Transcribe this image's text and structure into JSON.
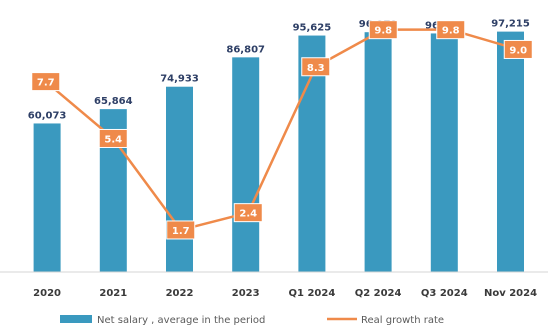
{
  "chart_data": {
    "type": "bar",
    "categories": [
      "2020",
      "2021",
      "2022",
      "2023",
      "Q1 2024",
      "Q2 2024",
      "Q3 2024",
      "Nov 2024"
    ],
    "series": [
      {
        "name": "Net salary , average in the period",
        "chart_type": "bar",
        "axis": "left",
        "values": [
          60073,
          65864,
          74933,
          86807,
          95625,
          96979,
          96475,
          97215
        ],
        "labels": [
          "60,073",
          "65,864",
          "74,933",
          "86,807",
          "95,625",
          "96,979",
          "96,475",
          "97,215"
        ],
        "color": "#3a99bf"
      },
      {
        "name": "Real growth rate",
        "chart_type": "line",
        "axis": "right",
        "values": [
          7.7,
          5.4,
          1.7,
          2.4,
          8.3,
          9.8,
          9.8,
          9.0
        ],
        "labels": [
          "7.7",
          "5.4",
          "1.7",
          "2.4",
          "8.3",
          "9.8",
          "9.8",
          "9.0"
        ],
        "color": "#ef8a4a"
      }
    ],
    "left_axis": {
      "min": 0,
      "max": 110000,
      "visible": false
    },
    "right_axis": {
      "min": 0,
      "max": 11,
      "visible": false
    },
    "grid": false,
    "legend": {
      "position": "bottom-center"
    }
  }
}
